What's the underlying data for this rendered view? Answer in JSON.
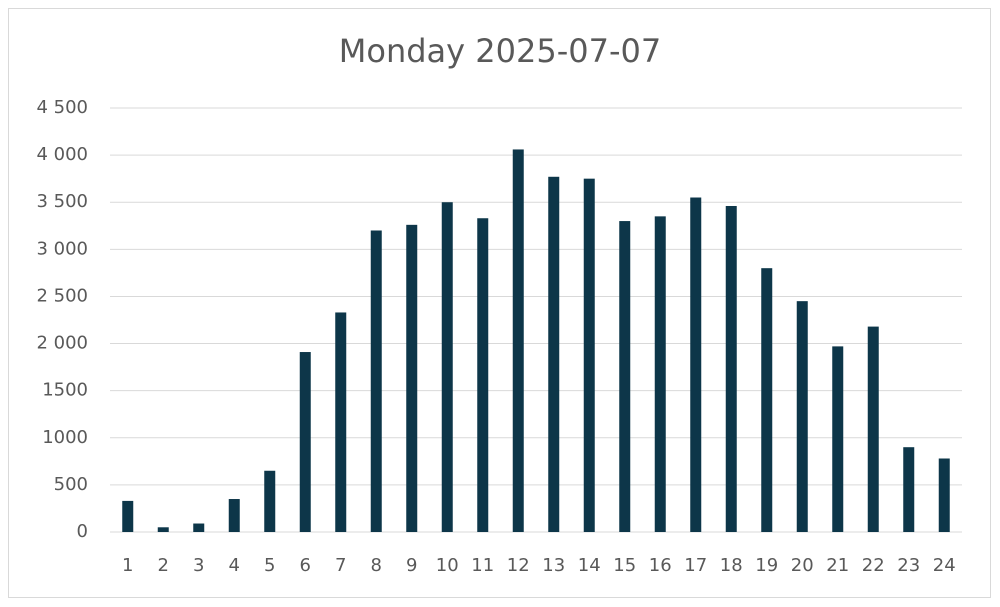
{
  "chart_data": {
    "type": "bar",
    "title": "Monday 2025-07-07",
    "categories": [
      "1",
      "2",
      "3",
      "4",
      "5",
      "6",
      "7",
      "8",
      "9",
      "10",
      "11",
      "12",
      "13",
      "14",
      "15",
      "16",
      "17",
      "18",
      "19",
      "20",
      "21",
      "22",
      "23",
      "24"
    ],
    "values": [
      330,
      50,
      90,
      350,
      650,
      1910,
      2330,
      3200,
      3260,
      3500,
      3330,
      4060,
      3770,
      3750,
      3300,
      3350,
      3550,
      3460,
      2800,
      2450,
      1970,
      2180,
      900,
      780
    ],
    "color": "#0d3649",
    "ylim": [
      0,
      4500
    ],
    "yticks": [
      0,
      500,
      1000,
      1500,
      {
        "value": 2000,
        "label": "2 000"
      },
      {
        "value": 2500,
        "label": "2 500"
      },
      {
        "value": 3000,
        "label": "3 000"
      },
      {
        "value": 3500,
        "label": "3 500"
      },
      {
        "value": 4000,
        "label": "4 000"
      },
      {
        "value": 4500,
        "label": "4 500"
      }
    ],
    "grid": true
  }
}
